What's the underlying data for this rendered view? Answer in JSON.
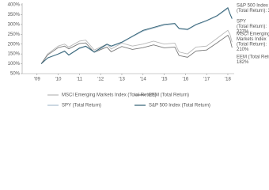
{
  "chart_data": {
    "type": "line",
    "x": [
      2009.2,
      2009.5,
      2010.0,
      2010.3,
      2010.5,
      2011.0,
      2011.3,
      2011.7,
      2012.0,
      2012.3,
      2012.5,
      2013.0,
      2013.5,
      2014.0,
      2014.5,
      2015.0,
      2015.5,
      2015.7,
      2016.1,
      2016.5,
      2017.0,
      2017.5,
      2018.0,
      2018.1,
      2018.2
    ],
    "series": [
      {
        "name": "S&P 500 Index (Total Return)",
        "color": "#2f5f73",
        "values": [
          100,
          130,
          150,
          165,
          145,
          180,
          190,
          160,
          180,
          200,
          190,
          210,
          240,
          270,
          285,
          300,
          305,
          280,
          275,
          300,
          320,
          345,
          385,
          355,
          330
        ]
      },
      {
        "name": "SPY (Total Return)",
        "color": "#a9bfce",
        "values": [
          100,
          128,
          148,
          162,
          143,
          177,
          187,
          158,
          177,
          197,
          187,
          207,
          237,
          266,
          281,
          296,
          301,
          277,
          272,
          297,
          317,
          342,
          381,
          352,
          327
        ]
      },
      {
        "name": "MSCI Emerging Markets Index (Total Return)",
        "color": "#b8b8b8",
        "values": [
          100,
          150,
          190,
          200,
          185,
          215,
          220,
          170,
          185,
          200,
          175,
          205,
          190,
          200,
          215,
          200,
          205,
          160,
          150,
          185,
          190,
          230,
          270,
          250,
          210
        ]
      },
      {
        "name": "EEM (Total Return)",
        "color": "#7a7a7a",
        "values": [
          100,
          145,
          182,
          190,
          176,
          203,
          206,
          158,
          172,
          185,
          161,
          188,
          173,
          182,
          196,
          181,
          185,
          142,
          133,
          165,
          170,
          207,
          245,
          225,
          182
        ]
      }
    ],
    "annotations": [
      [
        "S&P 500 Index",
        "(Total Return): 330%"
      ],
      [
        "SPY",
        "(Total Return):",
        "327%"
      ],
      [
        "MSCI Emerging",
        "Markets Index",
        "(Total Return):",
        "210%"
      ],
      [
        "EEM (Total Return):",
        "182%"
      ]
    ],
    "xlim": [
      2008.3,
      2018.3
    ],
    "xticks": [
      {
        "value": 2009,
        "label": "'09"
      },
      {
        "value": 2010,
        "label": "'10"
      },
      {
        "value": 2011,
        "label": "'11"
      },
      {
        "value": 2012,
        "label": "'12"
      },
      {
        "value": 2013,
        "label": "'13"
      },
      {
        "value": 2014,
        "label": "'14"
      },
      {
        "value": 2015,
        "label": "'15"
      },
      {
        "value": 2016,
        "label": "'16"
      },
      {
        "value": 2017,
        "label": "'17"
      },
      {
        "value": 2018,
        "label": "'18"
      }
    ],
    "ylim": [
      50,
      400
    ],
    "yticks": [
      {
        "value": 50,
        "label": "50%"
      },
      {
        "value": 100,
        "label": "100%"
      },
      {
        "value": 150,
        "label": "150%"
      },
      {
        "value": 200,
        "label": "200%"
      },
      {
        "value": 250,
        "label": "250%"
      },
      {
        "value": 300,
        "label": "300%"
      },
      {
        "value": 350,
        "label": "350%"
      },
      {
        "value": 400,
        "label": "400%"
      }
    ]
  }
}
